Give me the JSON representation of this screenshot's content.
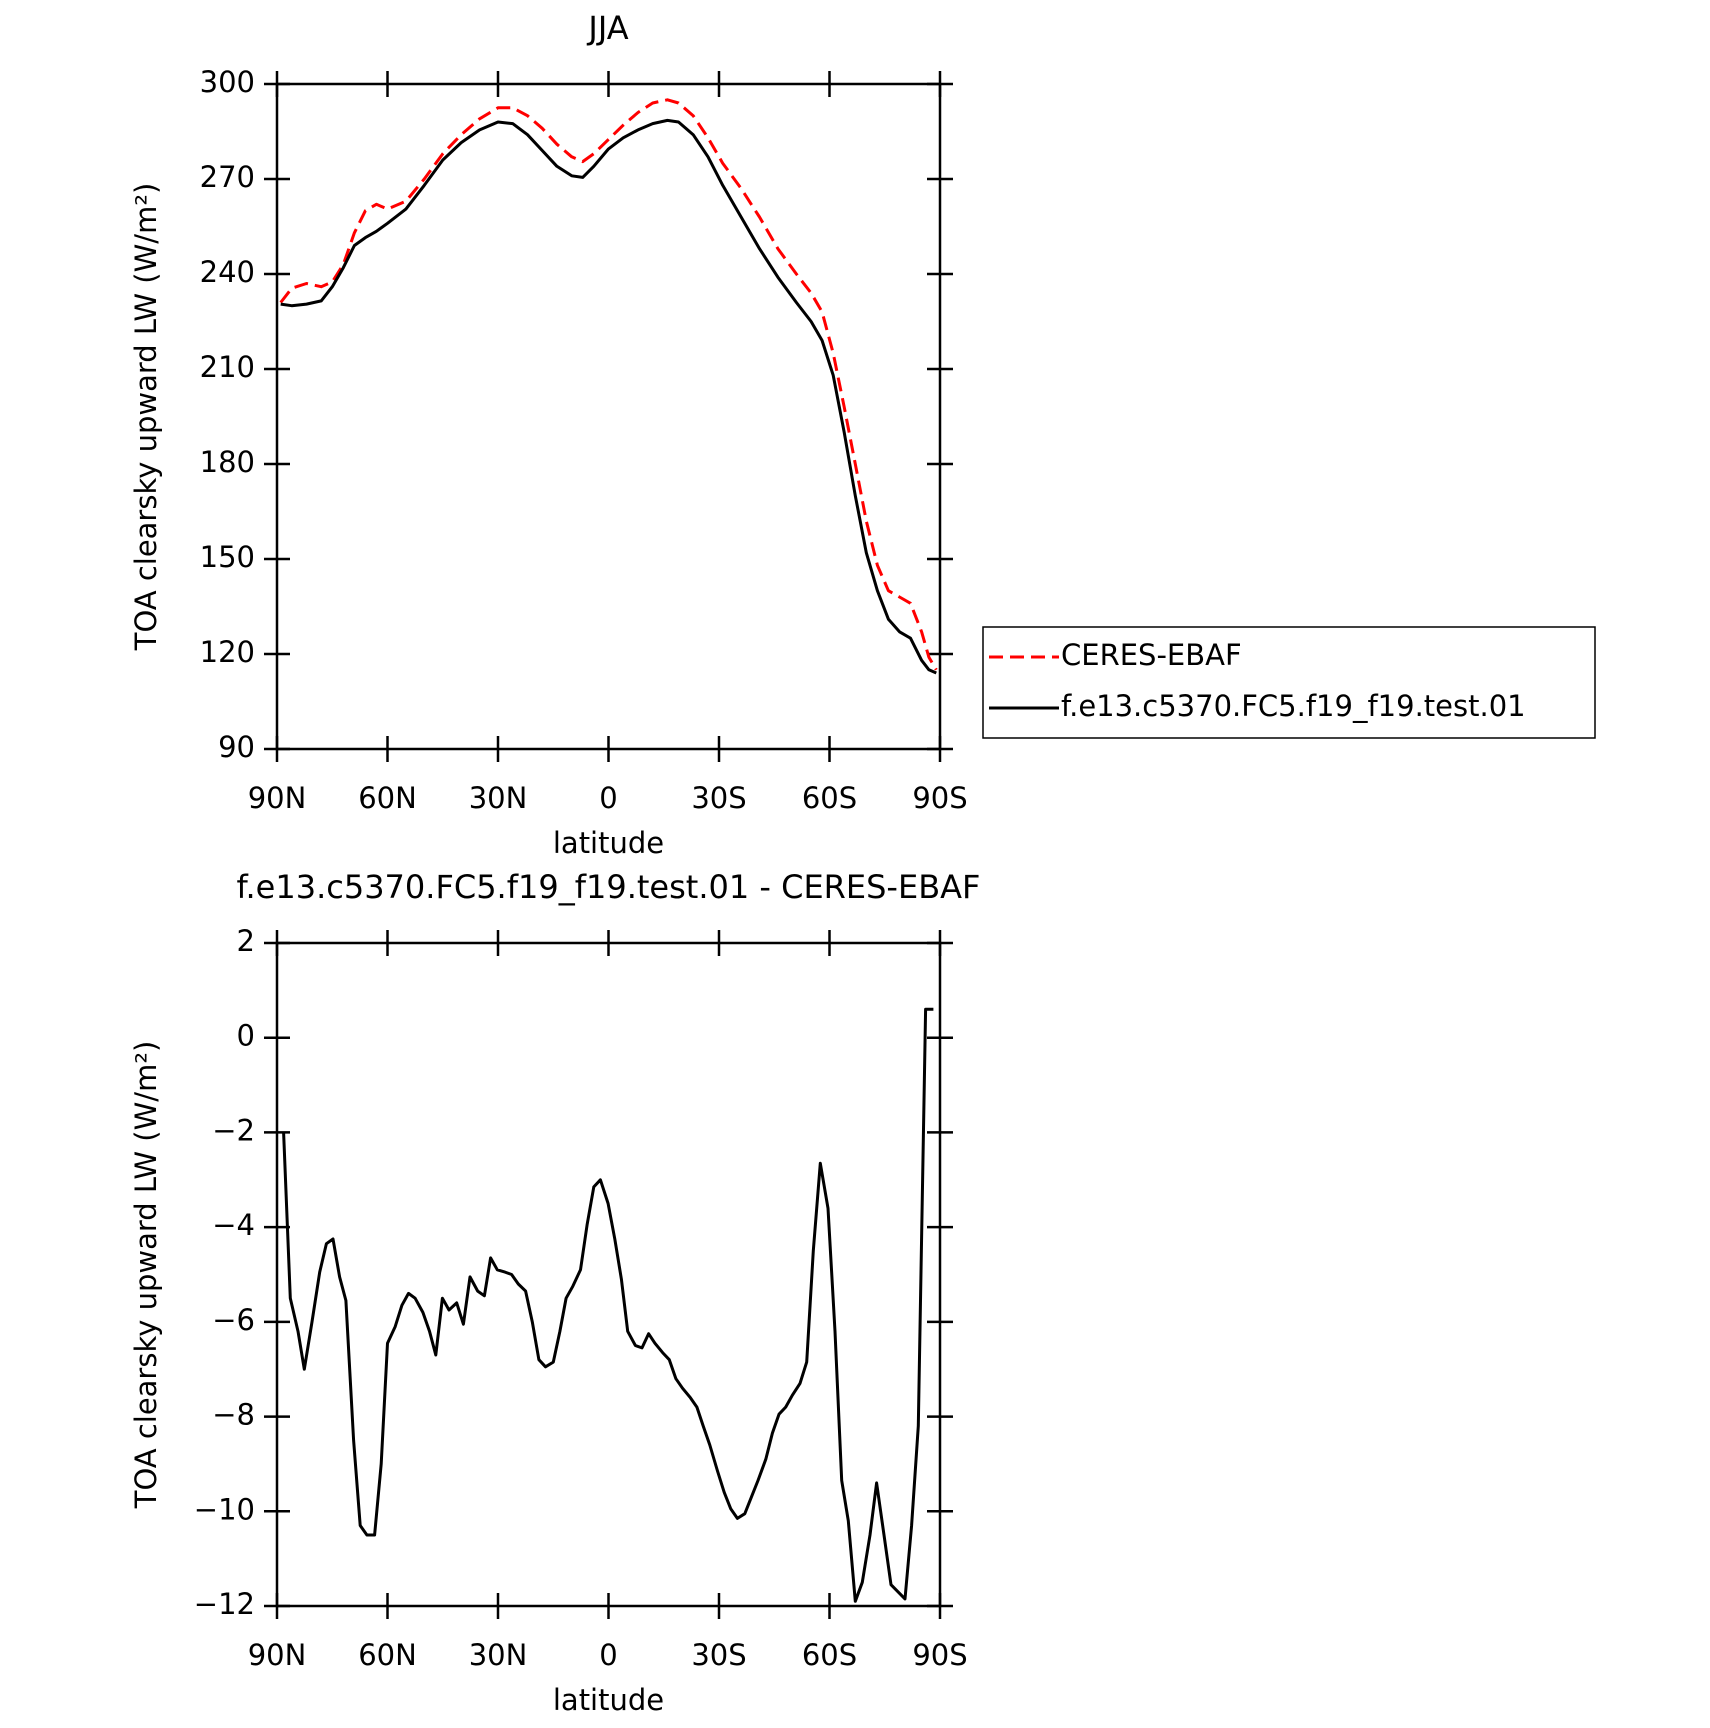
{
  "chart_data": [
    {
      "type": "line",
      "title": "JJA",
      "xlabel": "latitude",
      "ylabel": "TOA clearsky upward LW (W/m²)",
      "xlim": [
        90,
        -90
      ],
      "xticks": [
        {
          "value": 90,
          "label": "90N"
        },
        {
          "value": 60,
          "label": "60N"
        },
        {
          "value": 30,
          "label": "30N"
        },
        0,
        {
          "value": -30,
          "label": "30S"
        },
        {
          "value": -60,
          "label": "60S"
        },
        {
          "value": -90,
          "label": "90S"
        }
      ],
      "ylim": [
        90,
        300
      ],
      "yticks": [
        90,
        120,
        150,
        180,
        210,
        240,
        270,
        300
      ],
      "legend": "outside right",
      "x": [
        89,
        86,
        82,
        78,
        75,
        72,
        69,
        66,
        63,
        60,
        55,
        50,
        45,
        40,
        35,
        30,
        26,
        22,
        18,
        14,
        10,
        7,
        4,
        0,
        -4,
        -8,
        -12,
        -16,
        -19,
        -23,
        -27,
        -31,
        -36,
        -41,
        -46,
        -51,
        -55,
        -58,
        -61,
        -64,
        -67,
        -70,
        -73,
        -76,
        -79,
        -82,
        -85,
        -87,
        -89
      ],
      "series": [
        {
          "name": "CERES-EBAF",
          "color": "#ff0000",
          "dash": true,
          "values": [
            231,
            235.5,
            237,
            236,
            237.5,
            243,
            253,
            260,
            262,
            260.5,
            263,
            270,
            278,
            284,
            289,
            292.5,
            292.5,
            290,
            286,
            281,
            277,
            275.5,
            278,
            282.5,
            287,
            291,
            294,
            295,
            294,
            290,
            283,
            275,
            267,
            258,
            248,
            240,
            234,
            228,
            215,
            198,
            180,
            162,
            148,
            140,
            138,
            136,
            127,
            119,
            115
          ]
        },
        {
          "name": "f.e13.c5370.FC5.f19_f19.test.01",
          "color": "#000000",
          "dash": false,
          "values": [
            230.5,
            230,
            230.5,
            231.5,
            236,
            242,
            249,
            251.5,
            253.5,
            256,
            260.5,
            268,
            276,
            281.5,
            285.5,
            288,
            287.5,
            284,
            279,
            274,
            271,
            270.5,
            274,
            279.5,
            283,
            285.5,
            287.5,
            288.5,
            288,
            284,
            277,
            268,
            258,
            248,
            239,
            231,
            225,
            219,
            208,
            190,
            170,
            152,
            140,
            131,
            127,
            125,
            118,
            115,
            114
          ]
        }
      ]
    },
    {
      "type": "line",
      "title": "f.e13.c5370.FC5.f19_f19.test.01 - CERES-EBAF",
      "xlabel": "latitude",
      "ylabel": "TOA clearsky upward LW (W/m²)",
      "xlim": [
        90,
        -90
      ],
      "xticks": [
        {
          "value": 90,
          "label": "90N"
        },
        {
          "value": 60,
          "label": "60N"
        },
        {
          "value": 30,
          "label": "30N"
        },
        0,
        {
          "value": -30,
          "label": "30S"
        },
        {
          "value": -60,
          "label": "60S"
        },
        {
          "value": -90,
          "label": "90S"
        }
      ],
      "ylim": [
        -12,
        2
      ],
      "yticks": [
        {
          "value": -12,
          "label": "−12"
        },
        {
          "value": -10,
          "label": "−10"
        },
        {
          "value": -8,
          "label": "−8"
        },
        {
          "value": -6,
          "label": "−6"
        },
        {
          "value": -4,
          "label": "−4"
        },
        {
          "value": -2,
          "label": "−2"
        },
        0,
        2
      ],
      "x": [
        88.2,
        86.4,
        84.3,
        82.6,
        80.5,
        78.4,
        76.6,
        74.8,
        73,
        71.3,
        69.2,
        67.4,
        65.6,
        63.5,
        61.7,
        60,
        57.9,
        56.1,
        54.3,
        52.5,
        50.4,
        48.6,
        46.9,
        45.1,
        43.3,
        41.2,
        39.4,
        37.6,
        35.5,
        33.7,
        32,
        30.2,
        28.1,
        26.3,
        24.5,
        22.5,
        20.7,
        18.9,
        17.1,
        15,
        13.2,
        11.5,
        9.7,
        7.6,
        5.8,
        4,
        2.2,
        0.1,
        -1.7,
        -3.5,
        -5.2,
        -7.3,
        -9.1,
        -10.9,
        -12.6,
        -14.7,
        -16.5,
        -18.3,
        -20.1,
        -22.2,
        -24,
        -25.7,
        -27.5,
        -29.6,
        -31.4,
        -33.2,
        -35,
        -37,
        -38.8,
        -40.6,
        -42.7,
        -44.5,
        -46.3,
        -48.1,
        -49.9,
        -52,
        -53.8,
        -55.6,
        -57.5,
        -59.6,
        -61.5,
        -63.3,
        -65.1,
        -67,
        -68.9,
        -71,
        -72.8,
        -74.8,
        -76.7,
        -78.6,
        -80.5,
        -82.3,
        -84.1,
        -86.1,
        -88.2
      ],
      "series": [
        {
          "color": "#000000",
          "dash": false,
          "values": [
            -2,
            -5.5,
            -6.2,
            -7,
            -6,
            -4.95,
            -4.35,
            -4.25,
            -5.05,
            -5.55,
            -8.5,
            -10.3,
            -10.5,
            -10.5,
            -9,
            -6.45,
            -6.1,
            -5.65,
            -5.4,
            -5.5,
            -5.8,
            -6.2,
            -6.7,
            -5.5,
            -5.75,
            -5.6,
            -6.05,
            -5.05,
            -5.35,
            -5.45,
            -4.65,
            -4.9,
            -4.95,
            -5,
            -5.2,
            -5.35,
            -6,
            -6.8,
            -6.95,
            -6.85,
            -6.2,
            -5.5,
            -5.25,
            -4.9,
            -3.95,
            -3.15,
            -3,
            -3.5,
            -4.25,
            -5.1,
            -6.2,
            -6.5,
            -6.55,
            -6.25,
            -6.45,
            -6.65,
            -6.8,
            -7.2,
            -7.4,
            -7.6,
            -7.8,
            -8.2,
            -8.6,
            -9.15,
            -9.6,
            -9.95,
            -10.15,
            -10.05,
            -9.7,
            -9.35,
            -8.9,
            -8.35,
            -7.95,
            -7.8,
            -7.55,
            -7.3,
            -6.85,
            -4.5,
            -2.65,
            -3.6,
            -6.2,
            -9.35,
            -10.2,
            -11.9,
            -11.5,
            -10.5,
            -9.4,
            -10.5,
            -11.55,
            -11.7,
            -11.85,
            -10.3,
            -8.2,
            0.6,
            0.6
          ]
        }
      ]
    }
  ]
}
